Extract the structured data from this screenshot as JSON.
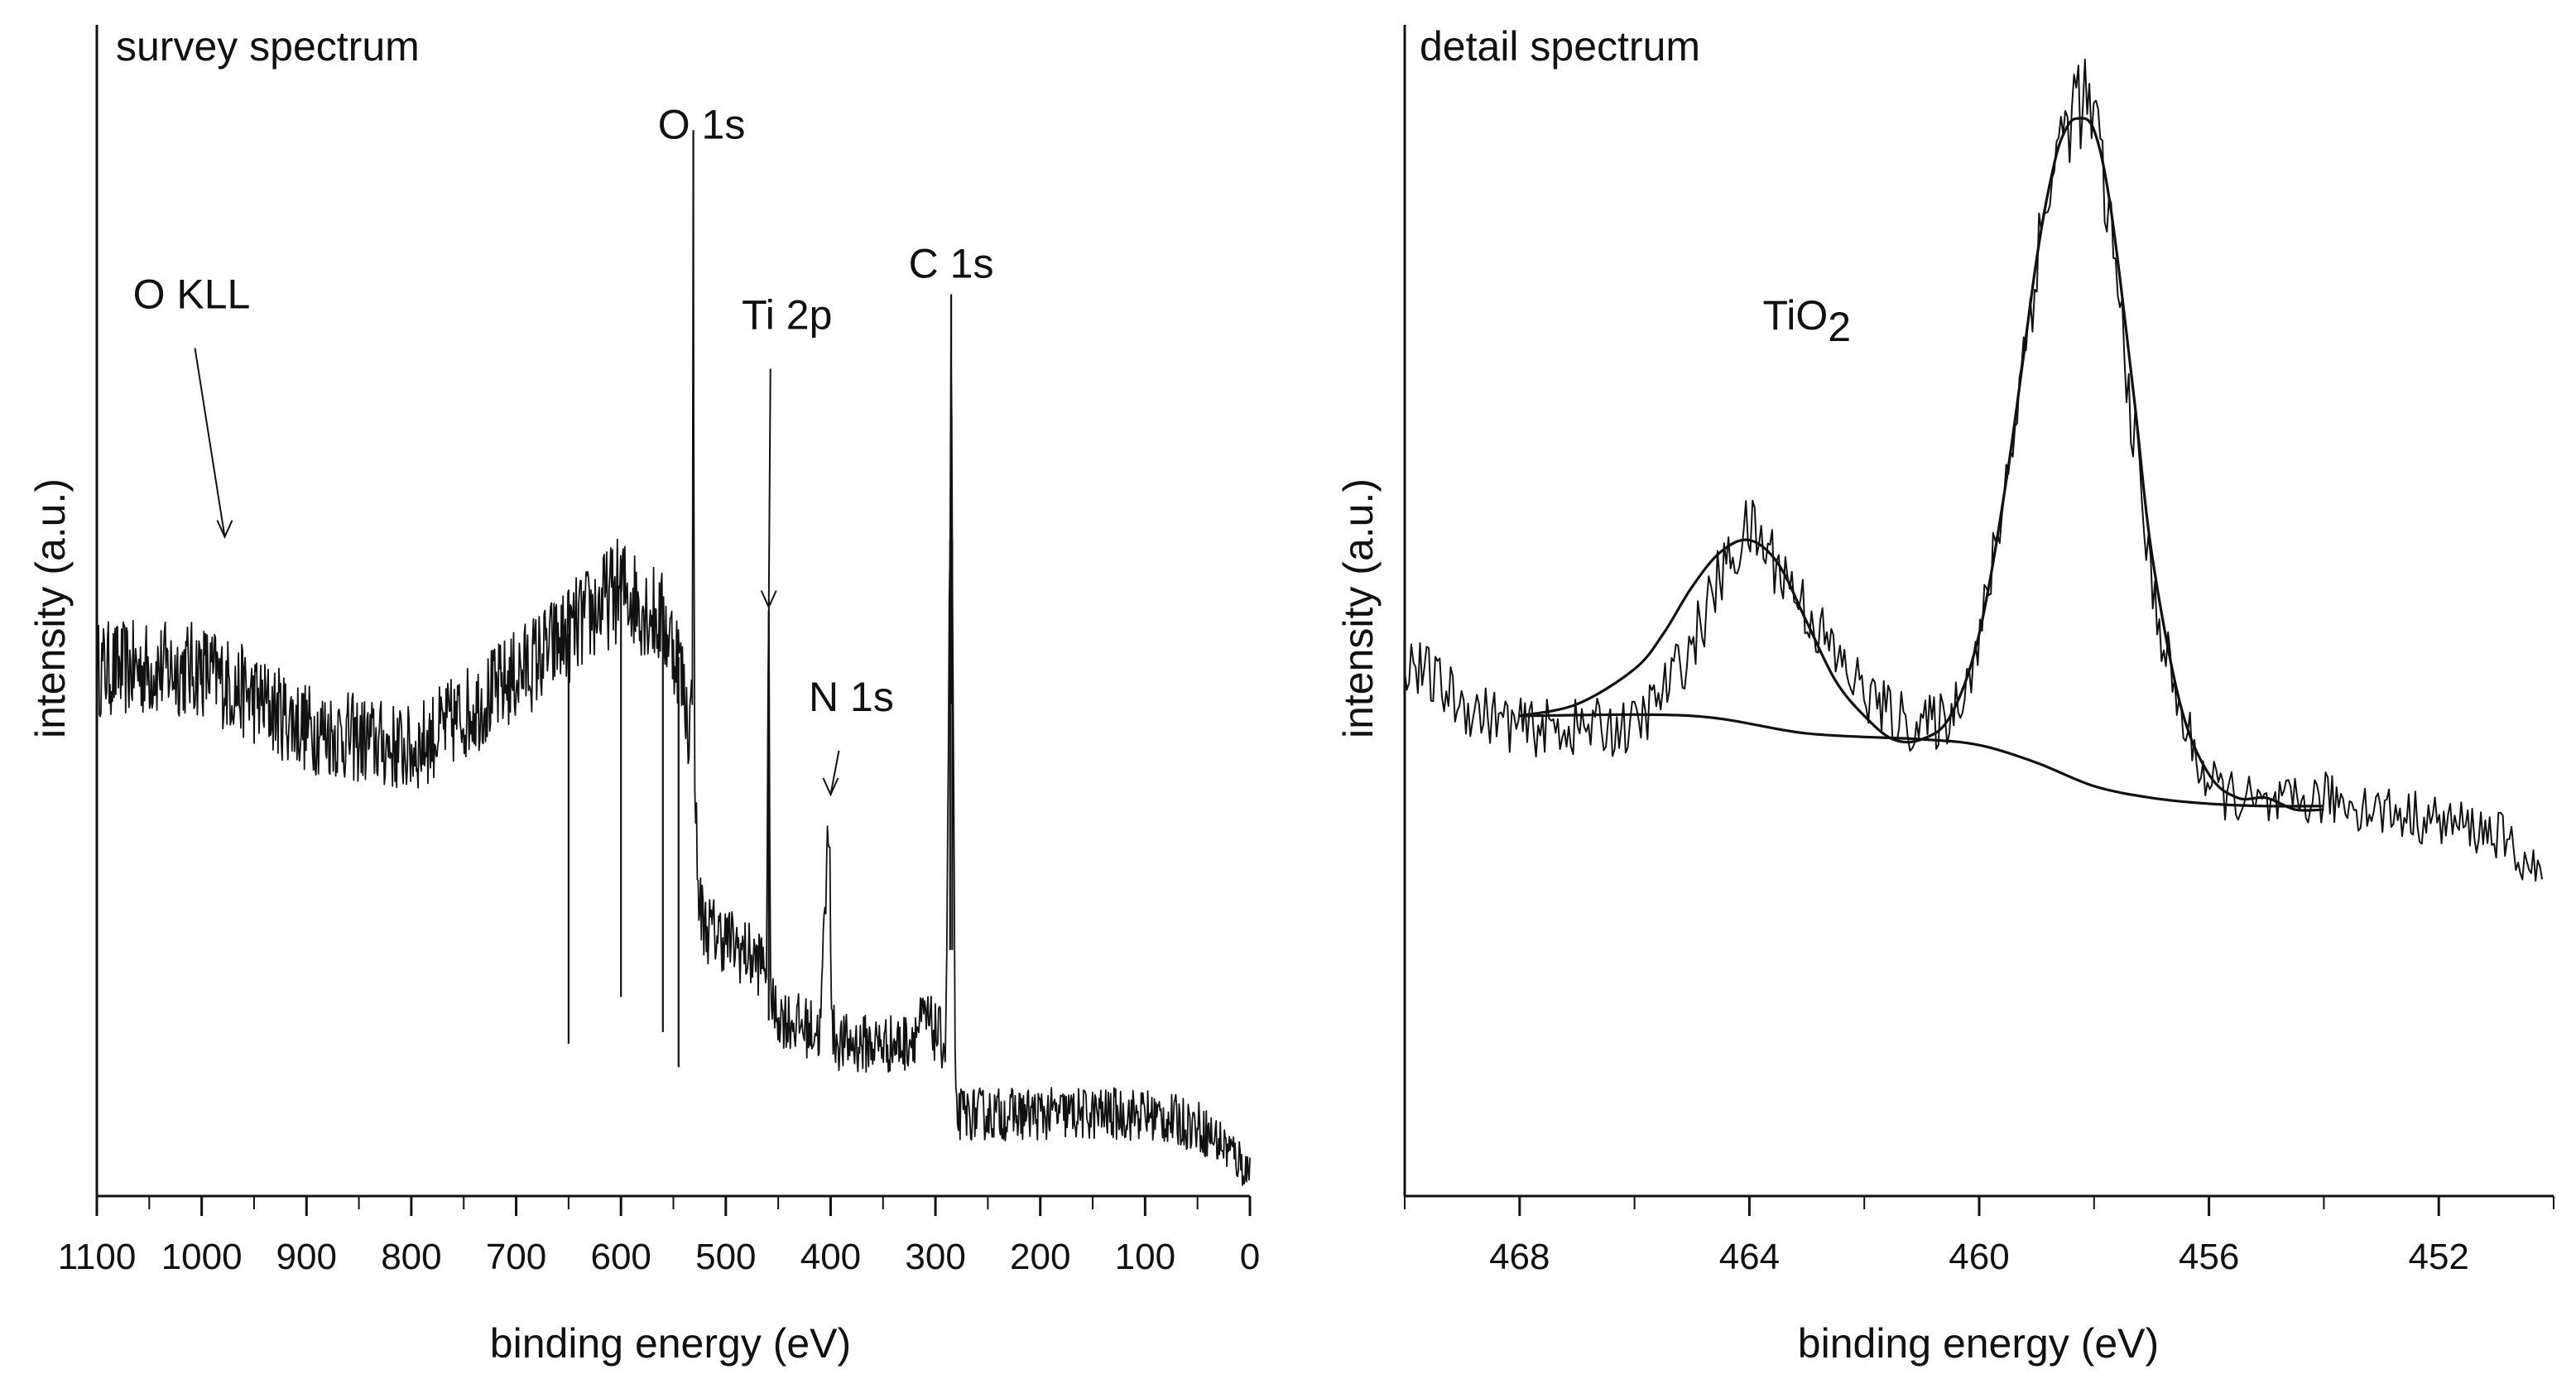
{
  "chart_data": [
    {
      "type": "line",
      "title": "survey spectrum",
      "xlabel": "binding energy (eV)",
      "ylabel": "intensity (a.u.)",
      "xlim": [
        1100,
        0
      ],
      "x_reversed": true,
      "ylim": [
        0,
        1
      ],
      "x_ticks": [
        1100,
        1000,
        900,
        800,
        700,
        600,
        500,
        400,
        300,
        200,
        100,
        0
      ],
      "tick_labels": [
        "1100",
        "1000",
        "900",
        "800",
        "700",
        "600",
        "500",
        "400",
        "300",
        "200",
        "100",
        "0"
      ],
      "annotations": [
        {
          "label": "O KLL",
          "x": 978,
          "y": 0.56
        },
        {
          "label": "O 1s",
          "x": 531,
          "y": 0.91
        },
        {
          "label": "Ti 2p",
          "x": 459,
          "y": 0.5
        },
        {
          "label": "N 1s",
          "x": 400,
          "y": 0.34
        },
        {
          "label": "C 1s",
          "x": 285,
          "y": 0.77
        }
      ],
      "series": [
        {
          "name": "survey",
          "noise": "high",
          "x": [
            1100,
            1000,
            900,
            800,
            720,
            650,
            600,
            560,
            545,
            535,
            532,
            531,
            530,
            527,
            520,
            500,
            470,
            461,
            459,
            457,
            440,
            410,
            401,
            399,
            390,
            330,
            310,
            290,
            286,
            285,
            284,
            281,
            270,
            200,
            100,
            50,
            20,
            0
          ],
          "values": [
            0.45,
            0.45,
            0.4,
            0.38,
            0.43,
            0.48,
            0.52,
            0.49,
            0.46,
            0.4,
            0.42,
            0.91,
            0.4,
            0.26,
            0.23,
            0.22,
            0.2,
            0.2,
            0.5,
            0.16,
            0.15,
            0.14,
            0.34,
            0.14,
            0.13,
            0.13,
            0.15,
            0.13,
            0.56,
            0.77,
            0.56,
            0.07,
            0.07,
            0.07,
            0.07,
            0.06,
            0.04,
            0.02
          ]
        }
      ]
    },
    {
      "type": "line",
      "title": "detail spectrum",
      "xlabel": "binding energy (eV)",
      "ylabel": "intensity (a.u.)",
      "xlim": [
        470,
        450
      ],
      "x_reversed": true,
      "ylim": [
        0,
        1
      ],
      "x_ticks": [
        468,
        464,
        460,
        456,
        452
      ],
      "minor_ticks": [
        470,
        466,
        462,
        458,
        454,
        450
      ],
      "tick_labels": [
        "468",
        "464",
        "460",
        "456",
        "452"
      ],
      "annotations": [
        {
          "label": "TiO",
          "sub": "2",
          "x": 463,
          "y": 0.74
        }
      ],
      "series": [
        {
          "name": "measured",
          "noise": "medium",
          "x": [
            470,
            469,
            468,
            467,
            466,
            465.5,
            465,
            464.5,
            464,
            463.5,
            463,
            462.5,
            462,
            461.5,
            461,
            460.5,
            460,
            459.5,
            459,
            458.7,
            458.3,
            458,
            457.7,
            457.3,
            457,
            456.5,
            456,
            455.5,
            455,
            454,
            453,
            452,
            451,
            450.2
          ],
          "values": [
            0.46,
            0.42,
            0.4,
            0.4,
            0.4,
            0.43,
            0.47,
            0.53,
            0.57,
            0.54,
            0.5,
            0.46,
            0.43,
            0.41,
            0.4,
            0.41,
            0.47,
            0.62,
            0.8,
            0.88,
            0.94,
            0.92,
            0.82,
            0.65,
            0.52,
            0.41,
            0.35,
            0.34,
            0.33,
            0.34,
            0.33,
            0.32,
            0.31,
            0.27
          ]
        },
        {
          "name": "fit",
          "x": [
            468,
            467,
            466,
            465.5,
            465,
            464.5,
            464,
            463.5,
            463,
            462.5,
            462,
            461.5,
            461,
            460.5,
            460,
            459.5,
            459,
            458.7,
            458.5,
            458.3,
            458,
            457.7,
            457.3,
            457,
            456.5,
            456,
            455.5,
            455,
            454.5,
            454
          ],
          "values": [
            0.41,
            0.42,
            0.45,
            0.48,
            0.52,
            0.55,
            0.56,
            0.54,
            0.49,
            0.44,
            0.41,
            0.39,
            0.39,
            0.41,
            0.48,
            0.62,
            0.8,
            0.88,
            0.91,
            0.92,
            0.91,
            0.84,
            0.68,
            0.55,
            0.42,
            0.36,
            0.34,
            0.34,
            0.33,
            0.33
          ]
        },
        {
          "name": "background",
          "x": [
            468,
            465,
            463,
            461,
            460,
            459,
            458,
            457,
            456,
            455,
            454
          ],
          "values": [
            0.41,
            0.41,
            0.395,
            0.39,
            0.385,
            0.37,
            0.35,
            0.34,
            0.335,
            0.333,
            0.333
          ]
        }
      ]
    }
  ]
}
